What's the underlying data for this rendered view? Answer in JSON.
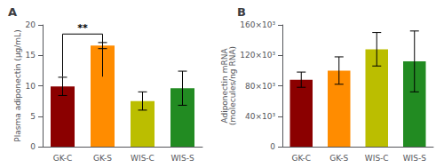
{
  "chart_data": [
    {
      "type": "bar",
      "title": "A",
      "categories": [
        "GK-C",
        "GK-S",
        "WIS-C",
        "WIS-S"
      ],
      "values": [
        9.9,
        16.6,
        7.5,
        9.6
      ],
      "errors": [
        1.5,
        0.5,
        1.5,
        2.8
      ],
      "colors": [
        "#8B0000",
        "#FF8C00",
        "#BBBE00",
        "#228B22"
      ],
      "ylabel": "Plasma adiponectin (μg/mL)",
      "ylim": [
        0,
        20
      ],
      "yticks": [
        0,
        5,
        10,
        15,
        20
      ],
      "grid": false,
      "annotations": [
        {
          "text": "**",
          "x": [
            "GK-C",
            "GK-S"
          ],
          "y": [
            11.5,
            18.5
          ]
        }
      ]
    },
    {
      "type": "bar",
      "title": "B",
      "categories": [
        "GK-C",
        "GK-S",
        "WIS-C",
        "WIS-S"
      ],
      "values": [
        88000,
        100000,
        128000,
        112000
      ],
      "errors": [
        10000,
        18000,
        22000,
        40000
      ],
      "colors": [
        "#8B0000",
        "#FF8C00",
        "#BBBE00",
        "#228B22"
      ],
      "ylabel": "Adiponectin mRNA\n(molecules/ng RNA)",
      "ylim": [
        0,
        160000
      ],
      "yticks": [
        0,
        {
          "value": 40000,
          "label": "40×10³"
        },
        {
          "value": 80000,
          "label": "80×10³"
        },
        {
          "value": 120000,
          "label": "120×10³"
        },
        {
          "value": 160000,
          "label": "160×10³"
        }
      ],
      "grid": false
    }
  ]
}
